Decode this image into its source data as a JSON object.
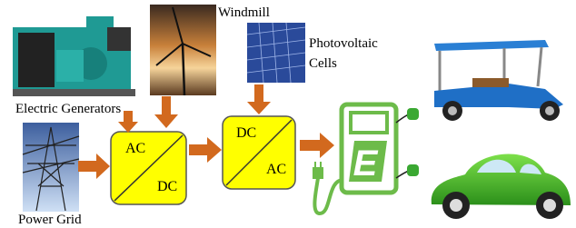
{
  "labels": {
    "generators": "Electric Generators",
    "windmill": "Windmill",
    "photovoltaic": [
      "Photovoltaic",
      "Cells"
    ],
    "grid": "Power Grid"
  },
  "converters": [
    {
      "input": "AC",
      "output": "DC"
    },
    {
      "input": "DC",
      "output": "AC"
    }
  ],
  "charger": {
    "label": "E"
  }
}
